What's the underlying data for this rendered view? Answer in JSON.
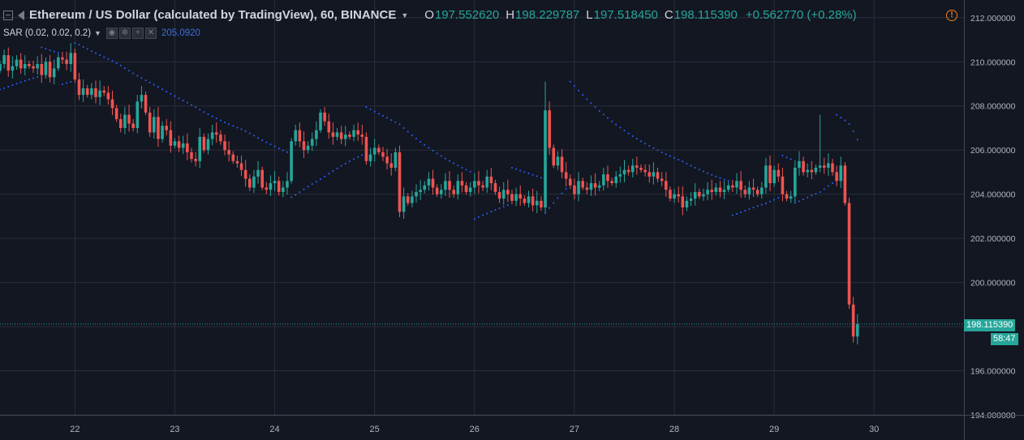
{
  "legend": {
    "symbol": "Ethereum / US Dollar (calculated by TradingView), 60, BINANCE",
    "open_label": "O",
    "open": "197.552620",
    "high_label": "H",
    "high": "198.229787",
    "low_label": "L",
    "low": "197.518450",
    "close_label": "C",
    "close": "198.115390",
    "change": "+0.562770 (+0.28%)"
  },
  "indicator": {
    "name": "SAR (0.02, 0.02, 0.2)",
    "value": "205.0920"
  },
  "price_tag": {
    "last": "198.115390",
    "countdown": "58:47"
  },
  "colors": {
    "background": "#131722",
    "grid": "#2a2e39",
    "up": "#26a69a",
    "down": "#ef5350",
    "sar": "#2962ff",
    "text": "#b2b5be",
    "alert": "#f57f17"
  },
  "icons": [
    "collapse-icon",
    "flag-icon",
    "caret-down-icon",
    "eye-icon",
    "gear-icon",
    "plus-icon",
    "close-icon",
    "alert-icon"
  ],
  "chart_data": {
    "type": "candlestick",
    "title": "Ethereum / US Dollar (calculated by TradingView), 60, BINANCE",
    "ylim": [
      194,
      212.8
    ],
    "y_ticks": [
      "212.000000",
      "210.000000",
      "208.000000",
      "206.000000",
      "204.000000",
      "202.000000",
      "200.000000",
      "198.000000",
      "196.000000",
      "194.000000"
    ],
    "x_ticks": [
      "22",
      "23",
      "24",
      "25",
      "26",
      "27",
      "28",
      "29",
      "30"
    ],
    "x_tick_values": [
      22,
      23,
      24,
      25,
      26,
      27,
      28,
      29,
      30
    ],
    "xlim": [
      21.25,
      30.9
    ],
    "grid": true,
    "candle_x_start": 21.25,
    "candle_x_step": 0.04167,
    "closes": [
      209.9,
      210.3,
      209.6,
      209.8,
      210.1,
      209.7,
      209.9,
      209.8,
      209.7,
      209.9,
      209.4,
      210.0,
      209.3,
      209.7,
      210.2,
      210.1,
      209.9,
      210.4,
      209.2,
      208.5,
      208.8,
      208.5,
      208.8,
      208.4,
      208.7,
      208.6,
      208.3,
      207.9,
      207.4,
      207.0,
      207.6,
      207.2,
      207.0,
      208.2,
      208.5,
      207.7,
      206.8,
      207.5,
      206.5,
      207.1,
      206.9,
      206.2,
      206.4,
      206.1,
      206.3,
      205.9,
      205.6,
      205.5,
      206.6,
      206.0,
      206.5,
      206.8,
      206.7,
      206.4,
      206.0,
      205.8,
      205.5,
      205.4,
      205.1,
      204.7,
      204.3,
      204.8,
      205.1,
      204.3,
      204.2,
      204.5,
      204.6,
      204.1,
      204.3,
      204.6,
      206.4,
      206.9,
      206.4,
      206.0,
      206.2,
      206.5,
      206.9,
      207.7,
      207.3,
      206.8,
      206.6,
      206.8,
      206.5,
      206.7,
      206.6,
      206.9,
      206.7,
      206.6,
      205.5,
      205.8,
      206.1,
      205.9,
      205.7,
      205.4,
      205.2,
      205.9,
      203.2,
      203.9,
      203.6,
      203.9,
      204.1,
      204.2,
      204.4,
      204.7,
      204.3,
      204.0,
      204.2,
      204.6,
      204.2,
      204.0,
      204.6,
      204.4,
      204.1,
      204.3,
      204.6,
      204.4,
      204.3,
      204.8,
      204.5,
      204.1,
      203.8,
      204.2,
      204.0,
      203.7,
      204.0,
      203.8,
      203.6,
      203.9,
      203.5,
      203.7,
      203.4,
      207.8,
      206.1,
      205.3,
      205.7,
      205.0,
      204.7,
      204.4,
      204.0,
      204.6,
      204.3,
      204.2,
      204.5,
      204.3,
      204.4,
      204.9,
      204.6,
      204.5,
      204.8,
      204.9,
      205.1,
      205.0,
      205.3,
      205.2,
      205.1,
      205.0,
      204.8,
      205.0,
      204.7,
      204.6,
      204.2,
      203.8,
      204.0,
      203.9,
      203.4,
      203.7,
      203.8,
      204.1,
      203.9,
      204.0,
      204.2,
      204.1,
      204.3,
      204.1,
      204.2,
      204.4,
      204.3,
      204.6,
      204.2,
      204.0,
      204.3,
      204.2,
      204.0,
      204.3,
      205.3,
      204.5,
      205.1,
      204.8,
      204.0,
      203.8,
      203.9,
      205.2,
      205.5,
      205.0,
      205.1,
      205.0,
      205.2,
      205.3,
      205.2,
      205.4,
      205.0,
      204.6,
      205.3,
      203.6,
      199.0,
      197.55,
      198.12
    ],
    "opens_note": "open of each candle = previous close"
  }
}
